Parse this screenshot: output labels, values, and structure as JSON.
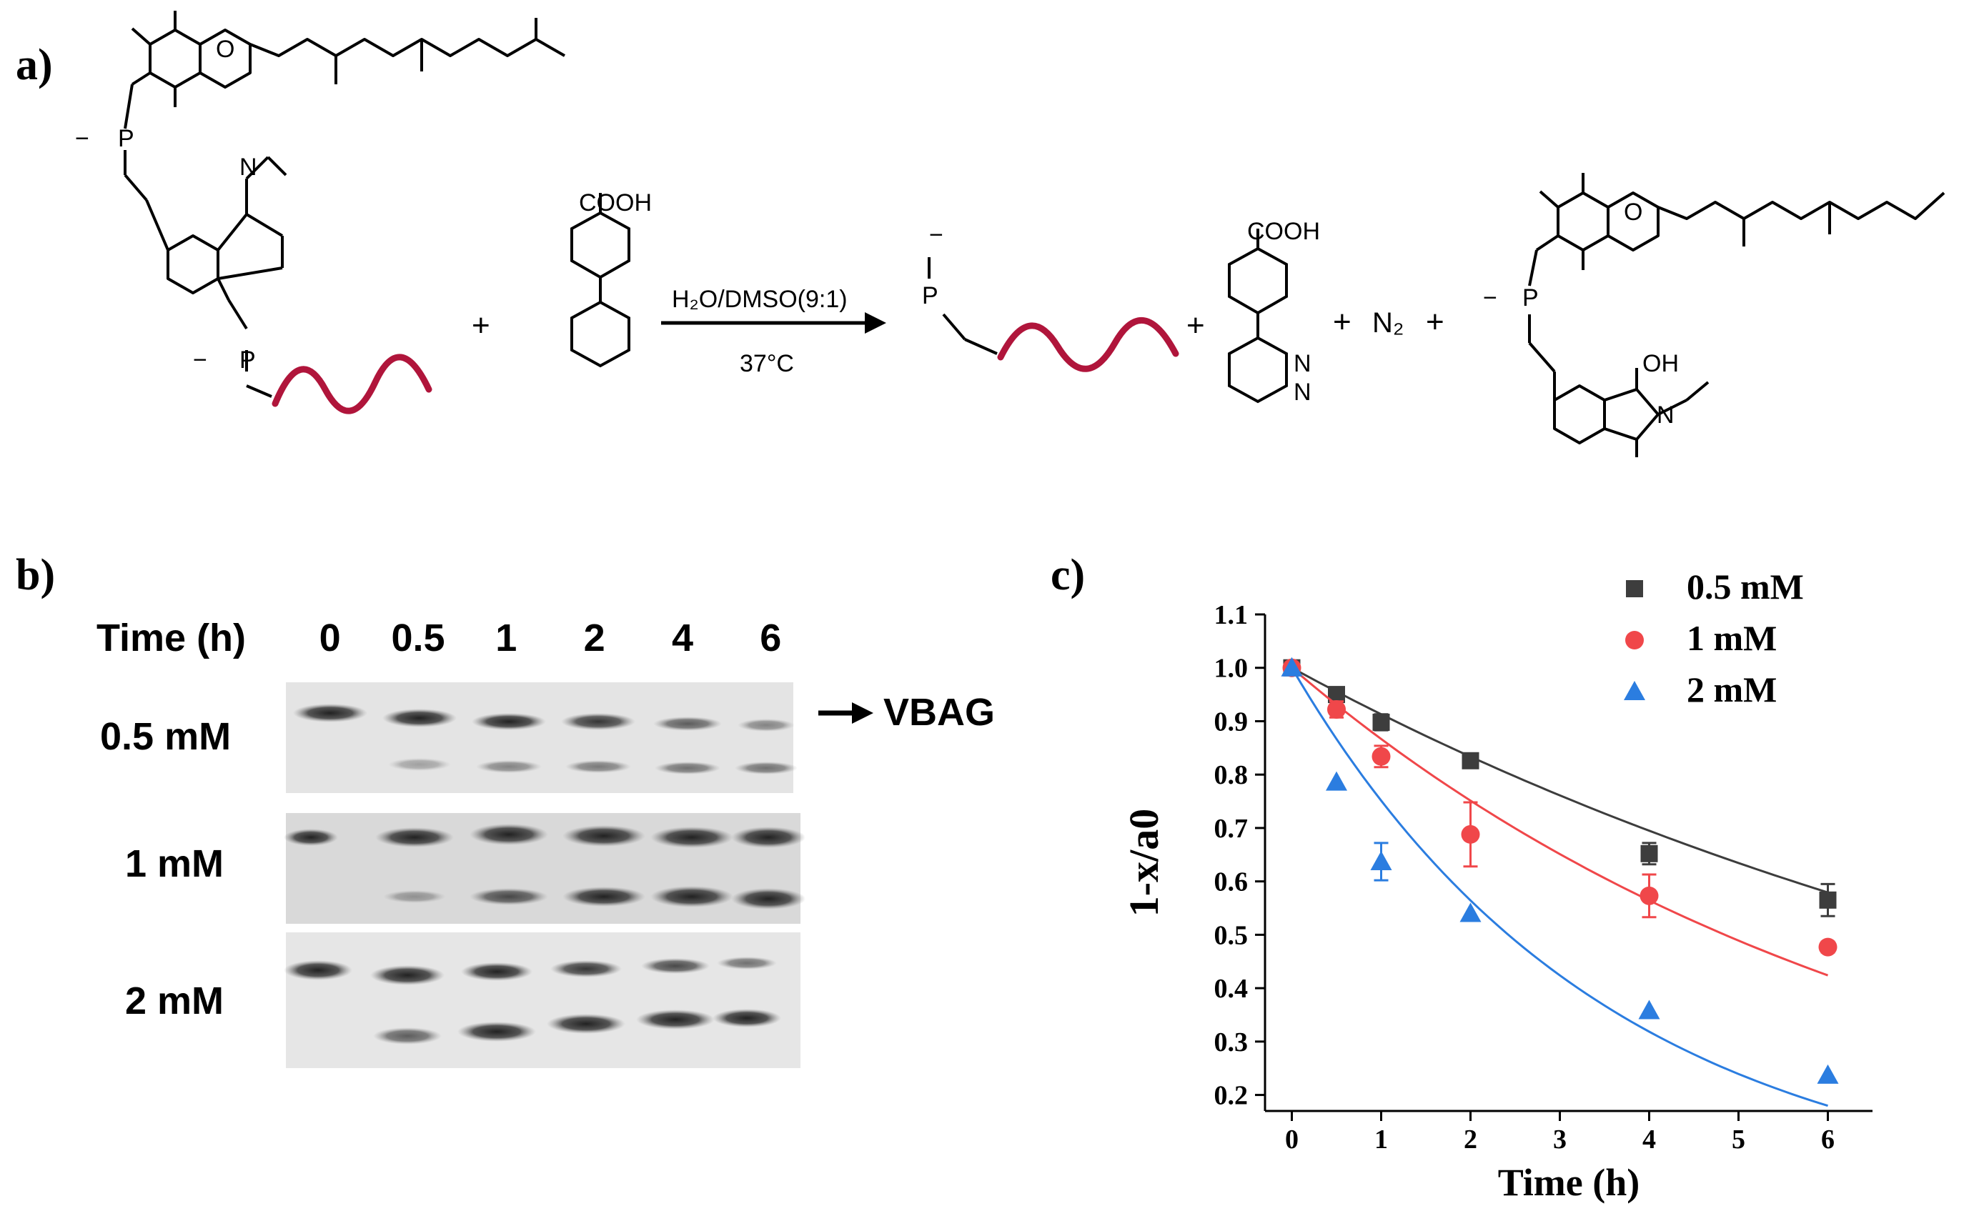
{
  "panels": {
    "a": {
      "letter": "a)",
      "reagent_label": "COOH",
      "product_label": "COOH",
      "condition_top": "H₂O/DMSO(9:1)",
      "condition_bottom": "37°C",
      "plus": "+",
      "n2": "N₂",
      "oh_label": "OH",
      "atoms": {
        "O": "O",
        "N": "N",
        "P": "P",
        "minus": "−"
      }
    },
    "b": {
      "letter": "b)",
      "time_header": "Time (h)",
      "times": [
        "0",
        "0.5",
        "1",
        "2",
        "4",
        "6"
      ],
      "rows": [
        "0.5 mM",
        "1 mM",
        "2 mM"
      ],
      "arrow_label": "VBAG"
    },
    "c": {
      "letter": "c)"
    }
  },
  "chart_data": {
    "type": "scatter",
    "xlabel": "Time (h)",
    "ylabel": "1-x/a0",
    "xlim": [
      -0.3,
      6.5
    ],
    "ylim": [
      0.17,
      1.1
    ],
    "xticks": [
      0,
      1,
      2,
      3,
      4,
      5,
      6
    ],
    "yticks": [
      0.2,
      0.3,
      0.4,
      0.5,
      0.6,
      0.7,
      0.8,
      0.9,
      1.0,
      1.1
    ],
    "legend_position": "top-right",
    "series": [
      {
        "name": "0.5 mM",
        "marker": "square",
        "color": "#3d3d3d",
        "x": [
          0,
          0.5,
          1,
          2,
          4,
          6
        ],
        "y": [
          1.0,
          0.95,
          0.898,
          0.826,
          0.652,
          0.565
        ],
        "err": [
          0,
          0.01,
          0.015,
          0.01,
          0.02,
          0.03
        ],
        "fit_k": 0.091
      },
      {
        "name": "1 mM",
        "marker": "circle",
        "color": "#f0474a",
        "x": [
          0,
          0.5,
          1,
          2,
          4,
          6
        ],
        "y": [
          1.0,
          0.922,
          0.834,
          0.688,
          0.573,
          0.477
        ],
        "err": [
          0,
          0.015,
          0.02,
          0.06,
          0.04,
          0.01
        ],
        "fit_k": 0.143
      },
      {
        "name": "2 mM",
        "marker": "triangle",
        "color": "#2b7de0",
        "x": [
          0,
          0.5,
          1,
          2,
          4,
          6
        ],
        "y": [
          1.0,
          0.786,
          0.637,
          0.54,
          0.358,
          0.237
        ],
        "err": [
          0,
          0.0,
          0.035,
          0.0,
          0.0,
          0.0
        ],
        "fit_k": 0.286
      }
    ]
  }
}
